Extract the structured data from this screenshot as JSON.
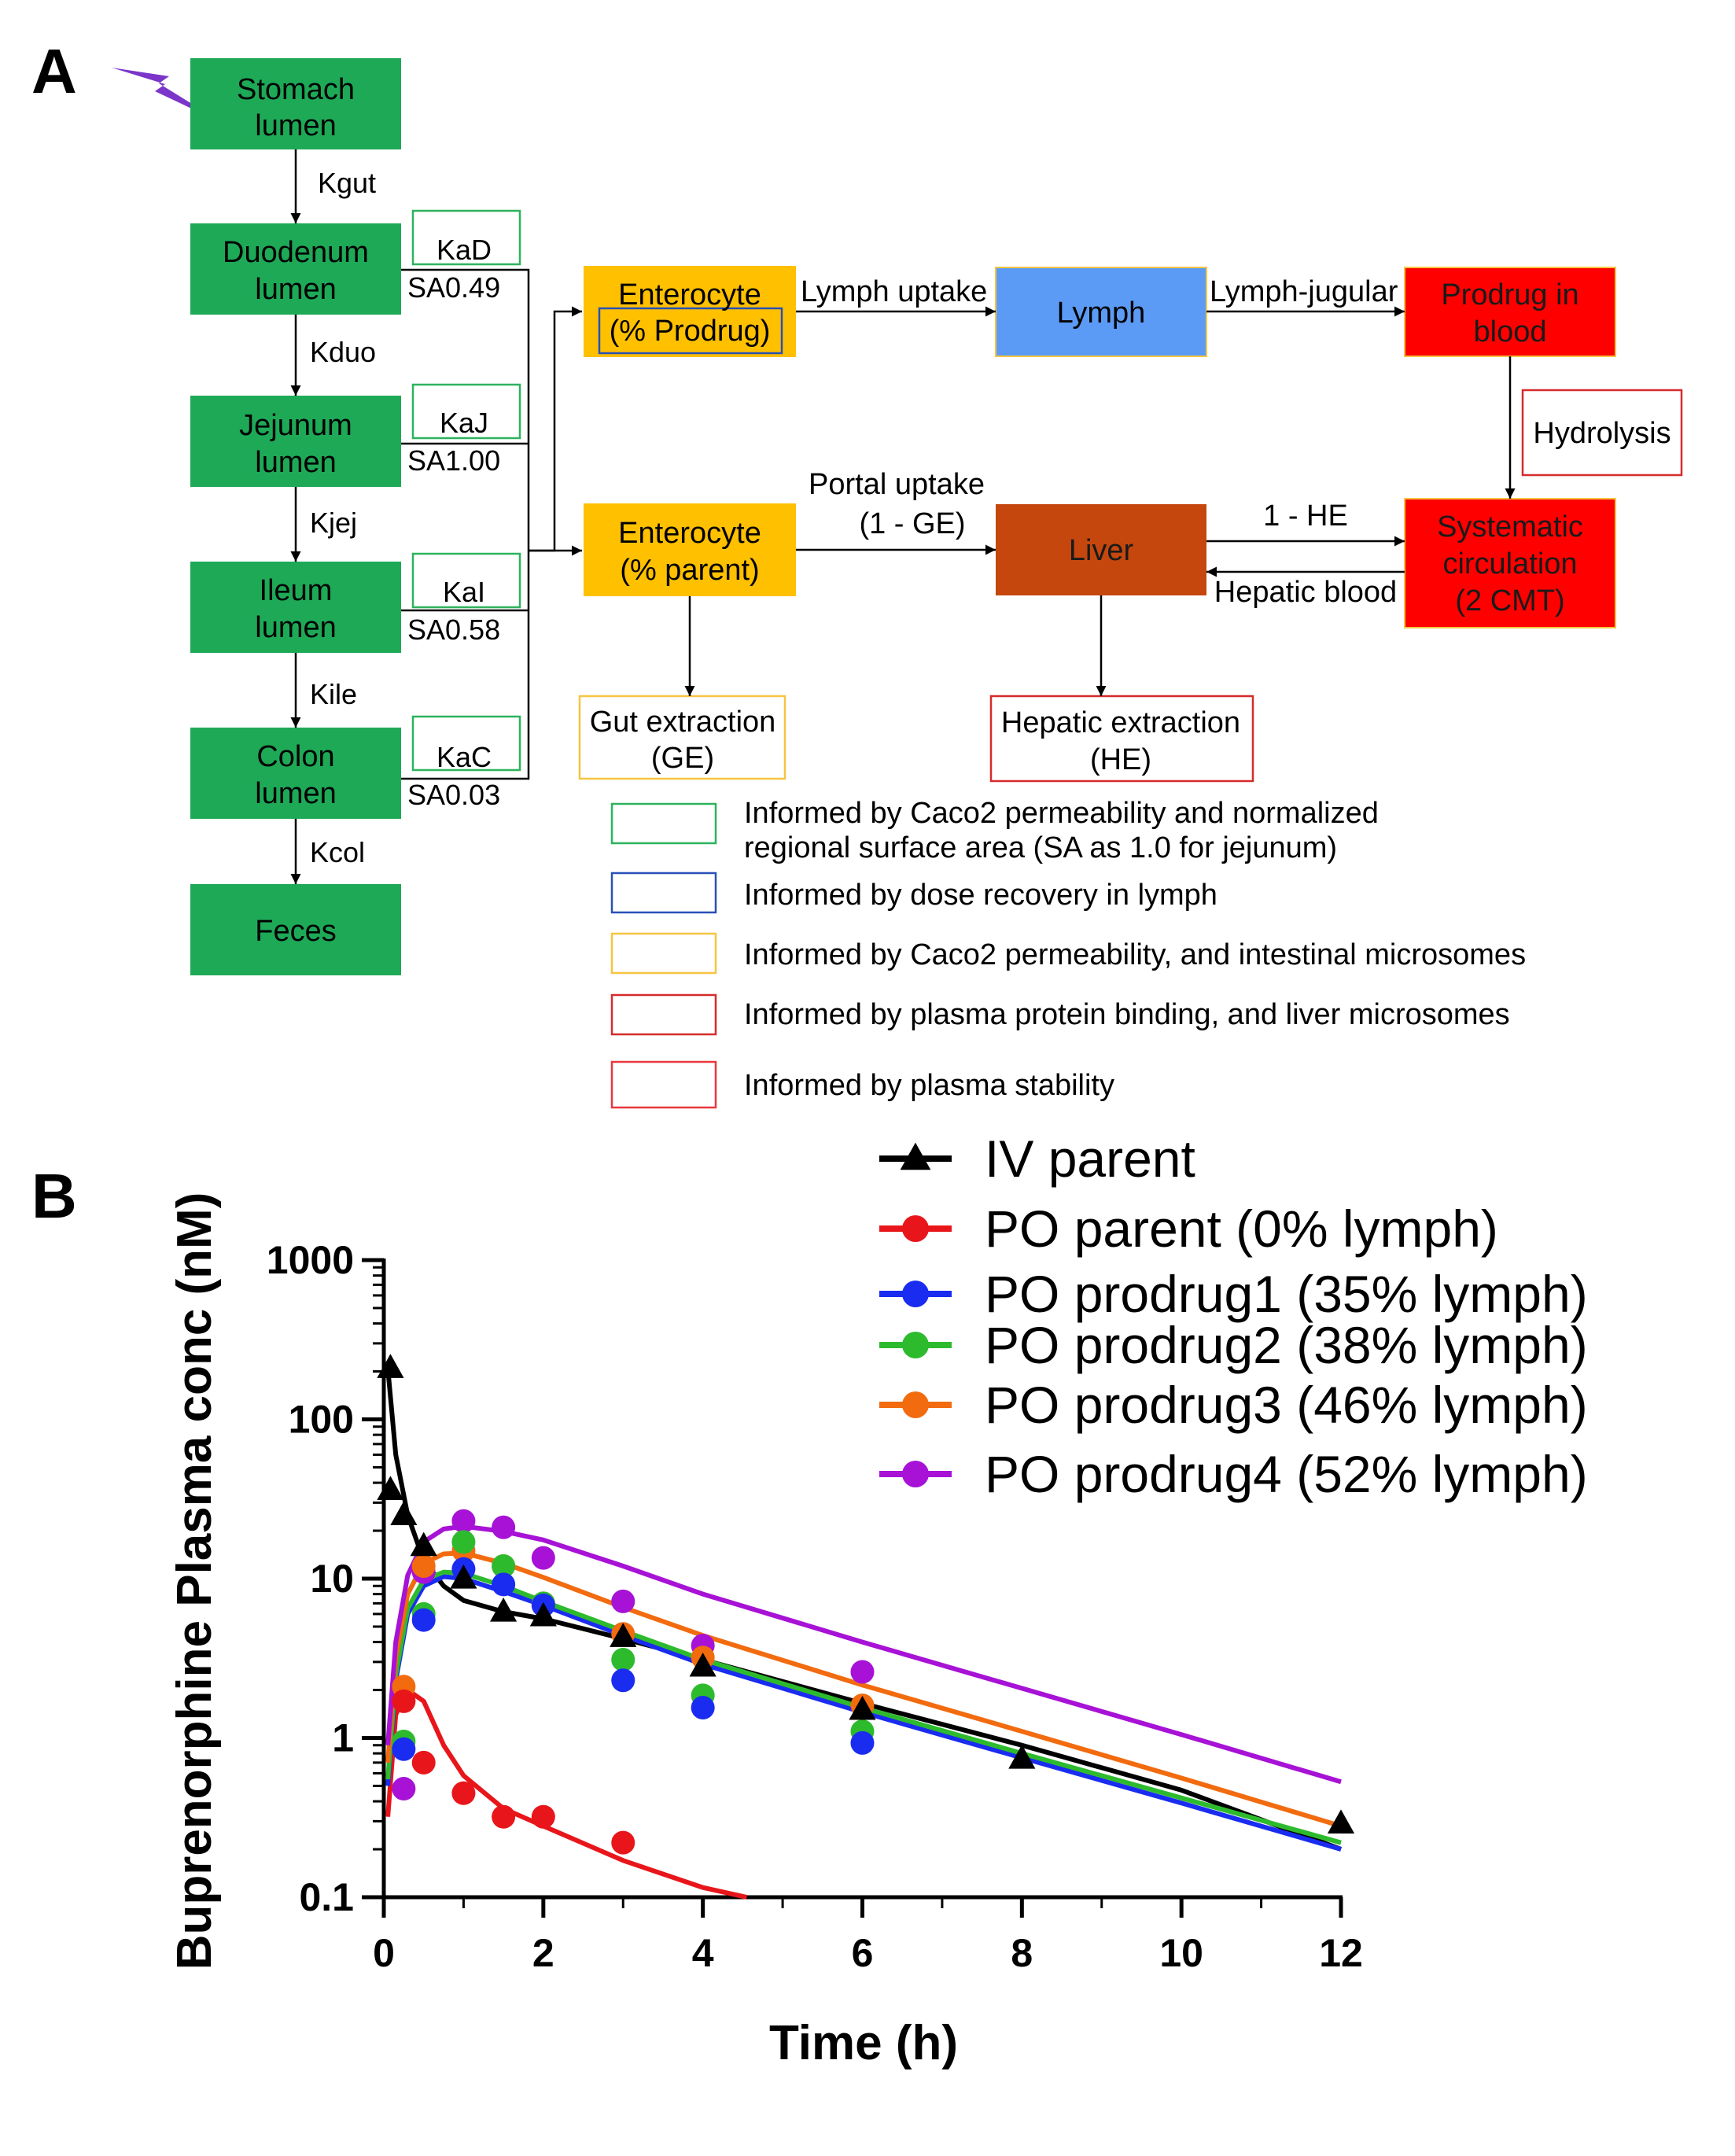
{
  "panel_a": {
    "label": "A",
    "gut_boxes": [
      {
        "line1": "Stomach",
        "line2": "lumen"
      },
      {
        "line1": "Duodenum",
        "line2": "lumen"
      },
      {
        "line1": "Jejunum",
        "line2": "lumen"
      },
      {
        "line1": "Ileum",
        "line2": "lumen"
      },
      {
        "line1": "Colon",
        "line2": "lumen"
      },
      {
        "line1": "Feces",
        "line2": ""
      }
    ],
    "transit_labels": [
      "Kgut",
      "Kduo",
      "Kjej",
      "Kile",
      "Kcol"
    ],
    "absorption": [
      {
        "ka": "KaD",
        "sa": "SA0.49"
      },
      {
        "ka": "KaJ",
        "sa": "SA1.00"
      },
      {
        "ka": "KaI",
        "sa": "SA0.58"
      },
      {
        "ka": "KaC",
        "sa": "SA0.03"
      }
    ],
    "enterocyte_prodrug": {
      "line1": "Enterocyte",
      "line2": "(% Prodrug)"
    },
    "enterocyte_parent": {
      "line1": "Enterocyte",
      "line2": "(% parent)"
    },
    "lymph": "Lymph",
    "prodrug_blood": {
      "line1": "Prodrug in",
      "line2": "blood"
    },
    "hydrolysis": "Hydrolysis",
    "liver": "Liver",
    "systemic": {
      "line1": "Systematic",
      "line2": "circulation",
      "line3": "(2 CMT)"
    },
    "gut_extraction": {
      "line1": "Gut extraction",
      "line2": "(GE)"
    },
    "hepatic_extraction": {
      "line1": "Hepatic extraction",
      "line2": "(HE)"
    },
    "edge_labels": {
      "lymph_uptake": "Lymph uptake",
      "lymph_jugular": "Lymph-jugular",
      "portal_uptake_1": "Portal uptake",
      "portal_uptake_2": "(1 - GE)",
      "one_minus_he": "1 - HE",
      "hepatic_blood": "Hepatic blood"
    },
    "legend": [
      {
        "color": "#2db35d",
        "line1": "Informed by Caco2 permeability and normalized",
        "line2": "regional surface area (SA as 1.0 for jejunum)"
      },
      {
        "color": "#2950b8",
        "line1": "Informed by dose recovery in lymph",
        "line2": ""
      },
      {
        "color": "#f5c542",
        "line1": "Informed by Caco2 permeability, and intestinal microsomes",
        "line2": ""
      },
      {
        "color": "#d62b2b",
        "line1": "Informed by plasma protein binding, and liver microsomes",
        "line2": ""
      },
      {
        "color": "#e8383d",
        "line1": "Informed by plasma stability",
        "line2": ""
      }
    ],
    "colors": {
      "gut": "#1ea957",
      "enterocyte": "#ffc000",
      "lymph": "#5b9bf5",
      "blood": "#ff0000",
      "liver": "#c5470e"
    }
  },
  "panel_b": {
    "label": "B",
    "chart_data": {
      "type": "line",
      "xlabel": "Time (h)",
      "ylabel": "Buprenorphine Plasma conc (nM)",
      "xlim": [
        0,
        12
      ],
      "ylim": [
        0.1,
        1000
      ],
      "y_scale": "log",
      "xticks": [
        "0",
        "2",
        "4",
        "6",
        "8",
        "10",
        "12"
      ],
      "yticks": [
        "0.1",
        "1",
        "10",
        "100",
        "1000"
      ],
      "legend_position": "top-right",
      "series": [
        {
          "name": "IV parent",
          "color": "#000000",
          "marker": "triangle",
          "observed": {
            "x": [
              0.083,
              0.083,
              0.25,
              0.5,
              1,
              1.5,
              2,
              3,
              4,
              6,
              8,
              12
            ],
            "y": [
              210,
              36,
              25,
              16,
              10,
              6.2,
              5.8,
              4.3,
              2.8,
              1.5,
              0.74,
              0.29
            ]
          },
          "model": {
            "x": [
              0.05,
              0.15,
              0.3,
              0.5,
              0.75,
              1,
              1.5,
              2,
              3,
              4,
              6,
              8,
              10,
              12
            ],
            "y": [
              210,
              60,
              25,
              13,
              9,
              7.3,
              6.2,
              5.6,
              4.2,
              3.1,
              1.65,
              0.9,
              0.47,
              0.2
            ]
          }
        },
        {
          "name": "PO parent (0% lymph)",
          "color": "#e8161b",
          "marker": "circle",
          "observed": {
            "x": [
              0.25,
              0.5,
              1,
              1.5,
              2,
              3
            ],
            "y": [
              1.7,
              0.7,
              0.45,
              0.32,
              0.32,
              0.22
            ]
          },
          "model": {
            "x": [
              0.05,
              0.15,
              0.3,
              0.5,
              0.75,
              1,
              1.5,
              2,
              3,
              4,
              4.55
            ],
            "y": [
              0.32,
              1.4,
              2.0,
              1.7,
              0.9,
              0.58,
              0.36,
              0.28,
              0.17,
              0.115,
              0.1
            ]
          }
        },
        {
          "name": "PO prodrug1 (35% lymph)",
          "color": "#1a2cf0",
          "marker": "circle",
          "observed": {
            "x": [
              0.25,
              0.5,
              1,
              1.5,
              2,
              3,
              4,
              6
            ],
            "y": [
              0.85,
              5.5,
              11.5,
              9.2,
              6.8,
              2.3,
              1.55,
              0.93
            ]
          },
          "model": {
            "x": [
              0.05,
              0.15,
              0.3,
              0.5,
              0.75,
              1,
              1.5,
              2,
              3,
              4,
              6,
              8,
              10,
              12
            ],
            "y": [
              0.5,
              2.3,
              6,
              9,
              10.3,
              10,
              8.3,
              6.8,
              4.4,
              2.9,
              1.45,
              0.75,
              0.39,
              0.2
            ]
          }
        },
        {
          "name": "PO prodrug2 (38% lymph)",
          "color": "#2dbb2d",
          "marker": "circle",
          "observed": {
            "x": [
              0.25,
              0.5,
              1,
              1.5,
              2,
              3,
              4,
              6
            ],
            "y": [
              0.95,
              6,
              17,
              12,
              7,
              3.1,
              1.85,
              1.1
            ]
          },
          "model": {
            "x": [
              0.05,
              0.15,
              0.3,
              0.5,
              0.75,
              1,
              1.5,
              2,
              3,
              4,
              6,
              8,
              10,
              12
            ],
            "y": [
              0.55,
              2.5,
              6.5,
              9.8,
              11,
              10.8,
              9,
              7.2,
              4.7,
              3.1,
              1.55,
              0.8,
              0.42,
              0.22
            ]
          }
        },
        {
          "name": "PO prodrug3 (46% lymph)",
          "color": "#f26b0f",
          "marker": "circle",
          "observed": {
            "x": [
              0.25,
              0.5,
              1,
              1.5,
              2,
              3,
              4,
              6
            ],
            "y": [
              2.1,
              12,
              15,
              12,
              7,
              4.5,
              3.2,
              1.6
            ]
          },
          "model": {
            "x": [
              0.05,
              0.15,
              0.3,
              0.5,
              0.75,
              1,
              1.5,
              2,
              3,
              4,
              6,
              8,
              10,
              12
            ],
            "y": [
              0.7,
              3.2,
              8,
              12.5,
              14.3,
              14.5,
              12.5,
              10.2,
              6.6,
              4.4,
              2.15,
              1.1,
              0.56,
              0.28
            ]
          }
        },
        {
          "name": "PO prodrug4 (52% lymph)",
          "color": "#a712d6",
          "marker": "circle",
          "observed": {
            "x": [
              0.25,
              0.5,
              1,
              1.5,
              2,
              3,
              4,
              6
            ],
            "y": [
              0.48,
              11,
              23,
              21,
              13.5,
              7.2,
              3.8,
              2.6
            ]
          },
          "model": {
            "x": [
              0.05,
              0.15,
              0.3,
              0.5,
              0.75,
              1,
              1.5,
              2,
              3,
              4,
              6,
              8,
              10,
              12
            ],
            "y": [
              0.9,
              4,
              10.5,
              17,
              20.5,
              21.3,
              19.8,
              17.5,
              12,
              8,
              4,
              2.05,
              1.05,
              0.53
            ]
          }
        }
      ]
    }
  }
}
